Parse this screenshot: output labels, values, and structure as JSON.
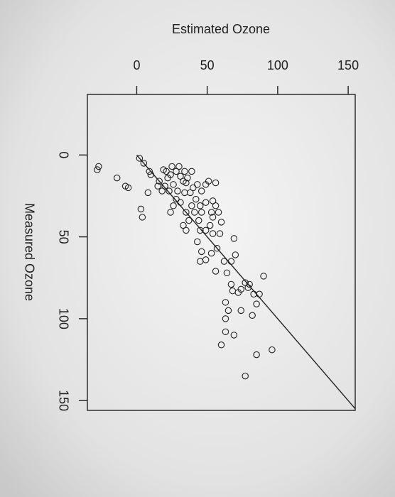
{
  "chart_data": {
    "type": "scatter",
    "xlabel": "Estimated Ozone",
    "ylabel": "Measured Ozone",
    "xlim": [
      -35,
      155
    ],
    "ylim": [
      -37,
      156
    ],
    "xticks": [
      0,
      50,
      100,
      150
    ],
    "yticks": [
      0,
      50,
      100,
      150
    ],
    "color": "#222222",
    "reference_line": {
      "x": [
        0,
        155
      ],
      "y": [
        0,
        155
      ]
    },
    "x": [
      -27,
      -28,
      -14,
      -8,
      -6,
      2,
      5,
      9,
      10,
      8,
      3,
      4,
      15,
      16,
      19,
      21,
      24,
      22,
      26,
      29,
      23,
      31,
      33,
      35,
      36,
      28,
      26,
      24,
      31,
      35,
      33,
      35,
      39,
      42,
      40,
      43,
      46,
      49,
      51,
      56,
      45,
      46,
      49,
      53,
      52,
      49,
      45,
      54,
      59,
      60,
      56,
      54,
      43,
      46,
      49,
      45,
      53,
      56,
      62,
      64,
      69,
      70,
      67,
      67,
      68,
      72,
      74,
      77,
      79,
      80,
      83,
      87,
      90,
      85,
      82,
      74,
      63,
      65,
      63,
      69,
      60,
      85,
      96,
      77,
      63,
      39,
      38,
      41,
      44,
      34,
      30,
      20,
      18,
      28,
      25,
      34,
      58,
      54,
      37,
      57
    ],
    "values": [
      7,
      9,
      14,
      19,
      20,
      2,
      5,
      10,
      12,
      23,
      33,
      38,
      19,
      16,
      9,
      10,
      12,
      14,
      18,
      22,
      22,
      13,
      16,
      17,
      14,
      27,
      31,
      35,
      29,
      35,
      43,
      46,
      31,
      27,
      20,
      18,
      22,
      18,
      16,
      17,
      31,
      35,
      29,
      35,
      43,
      46,
      46,
      48,
      48,
      41,
      31,
      28,
      53,
      59,
      64,
      65,
      60,
      71,
      65,
      72,
      51,
      61,
      65,
      79,
      83,
      84,
      82,
      78,
      81,
      79,
      85,
      85,
      74,
      91,
      98,
      95,
      90,
      95,
      108,
      110,
      116,
      122,
      119,
      135,
      100,
      10,
      23,
      35,
      40,
      23,
      7,
      19,
      22,
      10,
      7,
      10,
      35,
      38,
      40,
      57
    ]
  }
}
